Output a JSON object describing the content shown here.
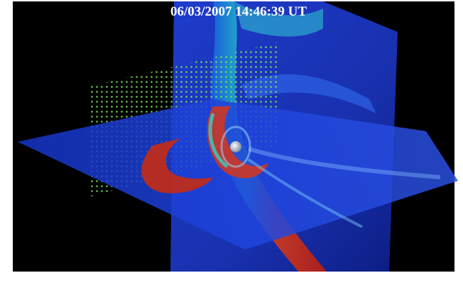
{
  "caption": {
    "timestamp": "06/03/2007 14:46:39 UT"
  }
}
